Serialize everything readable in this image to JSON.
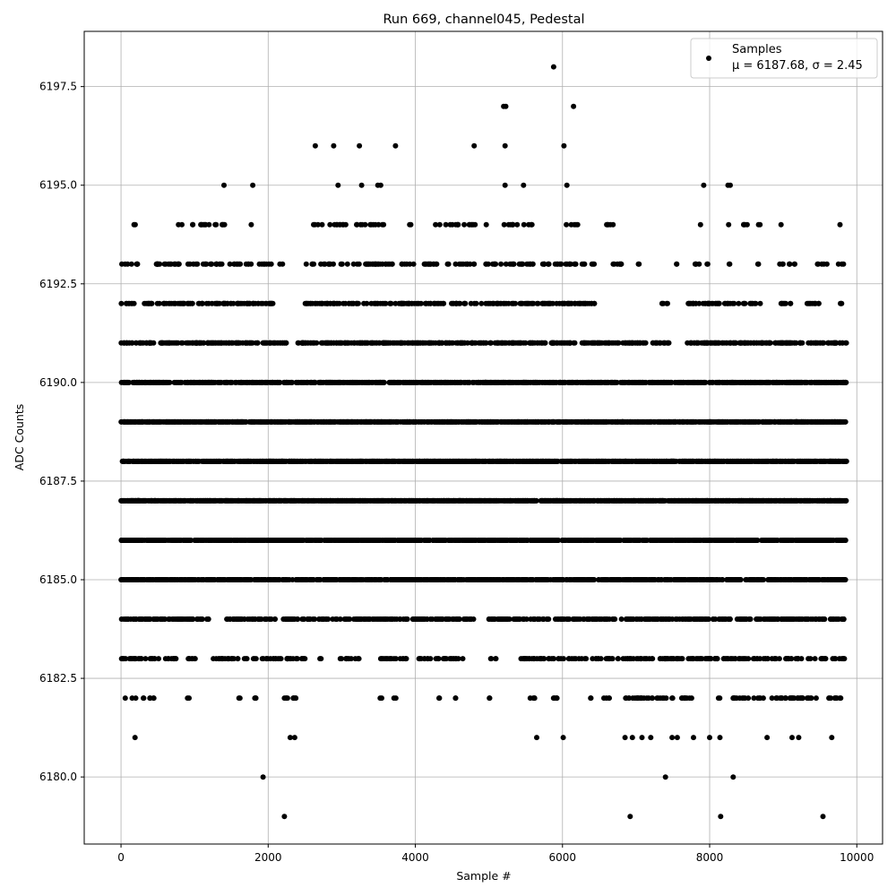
{
  "chart_data": {
    "type": "scatter",
    "title": "Run 669, channel045, Pedestal",
    "xlabel": "Sample #",
    "ylabel": "ADC Counts",
    "xlim": [
      -500,
      10350
    ],
    "ylim": [
      6178.3,
      6198.9
    ],
    "xticks": [
      0,
      2000,
      4000,
      6000,
      8000,
      10000
    ],
    "xtick_labels": [
      "0",
      "2000",
      "4000",
      "6000",
      "8000",
      "10000"
    ],
    "yticks": [
      6180.0,
      6182.5,
      6185.0,
      6187.5,
      6190.0,
      6192.5,
      6195.0,
      6197.5
    ],
    "ytick_labels": [
      "6180.0",
      "6182.5",
      "6185.0",
      "6187.5",
      "6190.0",
      "6192.5",
      "6195.0",
      "6197.5"
    ],
    "grid": true,
    "legend_position": "top-right",
    "series": [
      {
        "name": "Samples",
        "stats_label": "μ = 6187.68, σ = 2.45",
        "marker": "circle",
        "color": "#000000",
        "n_samples": 9860,
        "x_range": [
          0,
          9860
        ],
        "mean": 6187.68,
        "std": 2.45,
        "points": [
          [
            1930,
            6180
          ],
          [
            7400,
            6180
          ],
          [
            8320,
            6180
          ],
          [
            2220,
            6179
          ],
          [
            6920,
            6179
          ],
          [
            8150,
            6179
          ],
          [
            9540,
            6179
          ],
          [
            5880,
            6198
          ],
          [
            5200,
            6197
          ],
          [
            5230,
            6197
          ],
          [
            6150,
            6197
          ],
          [
            2640,
            6196
          ],
          [
            2890,
            6196
          ],
          [
            3240,
            6196
          ],
          [
            3730,
            6196
          ],
          [
            4800,
            6196
          ],
          [
            5220,
            6196
          ],
          [
            6020,
            6196
          ],
          [
            1400,
            6195
          ],
          [
            1790,
            6195
          ],
          [
            2950,
            6195
          ],
          [
            3270,
            6195
          ],
          [
            3490,
            6195
          ],
          [
            3530,
            6195
          ],
          [
            5220,
            6195
          ],
          [
            5470,
            6195
          ],
          [
            6060,
            6195
          ],
          [
            7920,
            6195
          ],
          [
            8250,
            6195
          ],
          [
            8280,
            6195
          ],
          [
            190,
            6181
          ],
          [
            2300,
            6181
          ],
          [
            2360,
            6181
          ],
          [
            5650,
            6181
          ],
          [
            6010,
            6181
          ],
          [
            6850,
            6181
          ],
          [
            6950,
            6181
          ],
          [
            7080,
            6181
          ],
          [
            7200,
            6181
          ],
          [
            7490,
            6181
          ],
          [
            7560,
            6181
          ],
          [
            7780,
            6181
          ],
          [
            8000,
            6181
          ],
          [
            8140,
            6181
          ],
          [
            8780,
            6181
          ],
          [
            9120,
            6181
          ],
          [
            9210,
            6181
          ],
          [
            9660,
            6181
          ]
        ],
        "levels": [
          {
            "adc": 6194,
            "count": 95,
            "ranges": [
              [
                100,
                200
              ],
              [
                700,
                1450
              ],
              [
                1750,
                1800
              ],
              [
                2500,
                3600
              ],
              [
                3850,
                3950
              ],
              [
                4250,
                5000
              ],
              [
                5200,
                5700
              ],
              [
                6050,
                6250
              ],
              [
                6550,
                6750
              ],
              [
                7850,
                7900
              ],
              [
                8250,
                8300
              ],
              [
                8450,
                8700
              ],
              [
                8950,
                9000
              ],
              [
                9750,
                9800
              ]
            ]
          },
          {
            "adc": 6193,
            "count": 230,
            "ranges": [
              [
                0,
                2050
              ],
              [
                2150,
                2200
              ],
              [
                2500,
                4000
              ],
              [
                4050,
                5650
              ],
              [
                5700,
                6800
              ],
              [
                7000,
                7050
              ],
              [
                7550,
                7600
              ],
              [
                7800,
                8000
              ],
              [
                8250,
                8300
              ],
              [
                8650,
                8700
              ],
              [
                8950,
                9200
              ],
              [
                9450,
                9600
              ],
              [
                9750,
                9850
              ]
            ]
          },
          {
            "adc": 6192,
            "count": 380,
            "ranges": [
              [
                0,
                2100
              ],
              [
                2500,
                6500
              ],
              [
                7350,
                7450
              ],
              [
                7700,
                8700
              ],
              [
                8950,
                9100
              ],
              [
                9300,
                9500
              ],
              [
                9750,
                9800
              ]
            ]
          },
          {
            "adc": 6191,
            "count": 700,
            "ranges": [
              [
                0,
                2250
              ],
              [
                2400,
                7150
              ],
              [
                7200,
                7450
              ],
              [
                7650,
                9860
              ]
            ]
          },
          {
            "adc": 6190,
            "count": 1150,
            "ranges": [
              [
                0,
                9860
              ]
            ]
          },
          {
            "adc": 6189,
            "count": 1450,
            "ranges": [
              [
                0,
                9860
              ]
            ]
          },
          {
            "adc": 6188,
            "count": 1600,
            "ranges": [
              [
                0,
                9860
              ]
            ]
          },
          {
            "adc": 6187,
            "count": 1650,
            "ranges": [
              [
                0,
                9860
              ]
            ]
          },
          {
            "adc": 6186,
            "count": 1450,
            "ranges": [
              [
                0,
                9860
              ]
            ]
          },
          {
            "adc": 6185,
            "count": 1100,
            "ranges": [
              [
                0,
                9860
              ]
            ]
          },
          {
            "adc": 6184,
            "count": 650,
            "ranges": [
              [
                0,
                1200
              ],
              [
                1400,
                2100
              ],
              [
                2200,
                4800
              ],
              [
                5000,
                9860
              ]
            ]
          },
          {
            "adc": 6183,
            "count": 360,
            "ranges": [
              [
                0,
                800
              ],
              [
                900,
                1050
              ],
              [
                1250,
                2500
              ],
              [
                2700,
                2750
              ],
              [
                2950,
                3250
              ],
              [
                3500,
                3900
              ],
              [
                4050,
                4650
              ],
              [
                5000,
                5100
              ],
              [
                5400,
                9860
              ]
            ]
          },
          {
            "adc": 6182,
            "count": 150,
            "ranges": [
              [
                50,
                60
              ],
              [
                150,
                200
              ],
              [
                300,
                450
              ],
              [
                900,
                950
              ],
              [
                1600,
                1650
              ],
              [
                1800,
                1900
              ],
              [
                2200,
                2400
              ],
              [
                3500,
                3550
              ],
              [
                3700,
                3750
              ],
              [
                4300,
                4350
              ],
              [
                4500,
                4550
              ],
              [
                5000,
                5050
              ],
              [
                5550,
                5650
              ],
              [
                5800,
                5950
              ],
              [
                6350,
                6400
              ],
              [
                6550,
                6650
              ],
              [
                6850,
                7500
              ],
              [
                7600,
                7800
              ],
              [
                8100,
                8150
              ],
              [
                8300,
                9450
              ],
              [
                9600,
                9800
              ]
            ]
          }
        ]
      }
    ]
  }
}
